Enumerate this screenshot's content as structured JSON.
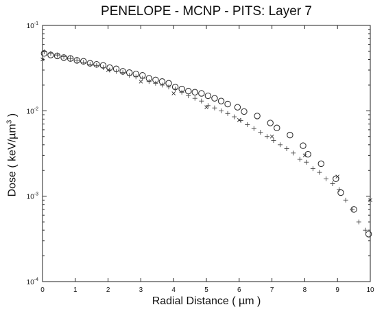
{
  "chart_data": {
    "type": "scatter",
    "title": "PENELOPE - MCNP - PITS: Layer 7",
    "xlabel": "Radial Distance ( µm )",
    "ylabel_parts": {
      "pre": "Dose ( keV/µm",
      "sup": "3",
      "post": " )"
    },
    "xlim": [
      0,
      10
    ],
    "ylim": [
      0.0001,
      0.1
    ],
    "yscale": "log",
    "grid": false,
    "x_ticks": [
      "0",
      "1",
      "2",
      "3",
      "4",
      "5",
      "6",
      "7",
      "8",
      "9",
      "10"
    ],
    "y_ticks": [
      {
        "value": 0.1,
        "mantissa": "10",
        "exp": "-1"
      },
      {
        "value": 0.01,
        "mantissa": "10",
        "exp": "-2"
      },
      {
        "value": 0.001,
        "mantissa": "10",
        "exp": "-3"
      },
      {
        "value": 0.0001,
        "mantissa": "10",
        "exp": "-4"
      }
    ],
    "series": [
      {
        "marker": "circle",
        "x": [
          0.05,
          0.25,
          0.45,
          0.65,
          0.85,
          1.05,
          1.25,
          1.45,
          1.65,
          1.85,
          2.05,
          2.25,
          2.45,
          2.65,
          2.85,
          3.05,
          3.25,
          3.45,
          3.65,
          3.85,
          4.05,
          4.25,
          4.45,
          4.65,
          4.85,
          5.05,
          5.25,
          5.45,
          5.65,
          5.95,
          6.15,
          6.55,
          6.95,
          7.15,
          7.55,
          7.95,
          8.1,
          8.5,
          8.95,
          9.1,
          9.5,
          9.95
        ],
        "y": [
          0.047,
          0.045,
          0.044,
          0.042,
          0.041,
          0.039,
          0.038,
          0.036,
          0.035,
          0.034,
          0.032,
          0.031,
          0.029,
          0.028,
          0.027,
          0.026,
          0.024,
          0.023,
          0.022,
          0.021,
          0.019,
          0.018,
          0.017,
          0.0165,
          0.016,
          0.015,
          0.014,
          0.013,
          0.012,
          0.011,
          0.0098,
          0.0087,
          0.0072,
          0.0063,
          0.0052,
          0.0039,
          0.0031,
          0.0024,
          0.0016,
          0.0011,
          0.0007,
          0.00036
        ]
      },
      {
        "marker": "plus",
        "x": [
          0.05,
          0.25,
          0.45,
          0.65,
          0.85,
          1.05,
          1.25,
          1.45,
          1.65,
          1.85,
          2.05,
          2.25,
          2.45,
          2.65,
          2.85,
          3.05,
          3.25,
          3.45,
          3.65,
          3.85,
          4.05,
          4.25,
          4.45,
          4.65,
          4.85,
          5.05,
          5.25,
          5.45,
          5.65,
          5.85,
          6.05,
          6.25,
          6.45,
          6.65,
          6.85,
          7.05,
          7.25,
          7.45,
          7.65,
          7.85,
          8.05,
          8.25,
          8.45,
          8.65,
          8.85,
          9.05,
          9.25,
          9.45,
          9.65,
          9.85
        ],
        "y": [
          0.049,
          0.047,
          0.045,
          0.043,
          0.041,
          0.039,
          0.037,
          0.035,
          0.034,
          0.032,
          0.03,
          0.029,
          0.028,
          0.026,
          0.025,
          0.024,
          0.022,
          0.021,
          0.02,
          0.019,
          0.018,
          0.0165,
          0.015,
          0.014,
          0.013,
          0.0115,
          0.0108,
          0.01,
          0.0093,
          0.0085,
          0.0077,
          0.0069,
          0.0062,
          0.0056,
          0.005,
          0.0045,
          0.004,
          0.0036,
          0.0032,
          0.0027,
          0.0025,
          0.0021,
          0.0019,
          0.0016,
          0.0014,
          0.0012,
          0.0009,
          0.0007,
          0.0005,
          0.0004
        ]
      },
      {
        "marker": "x",
        "x": [
          0.0,
          2.0,
          3.0,
          4.0,
          5.0,
          6.0,
          7.0,
          8.0,
          9.0,
          10.0
        ],
        "y": [
          0.04,
          0.03,
          0.022,
          0.016,
          0.011,
          0.0078,
          0.005,
          0.003,
          0.0017,
          0.0009
        ]
      }
    ]
  }
}
